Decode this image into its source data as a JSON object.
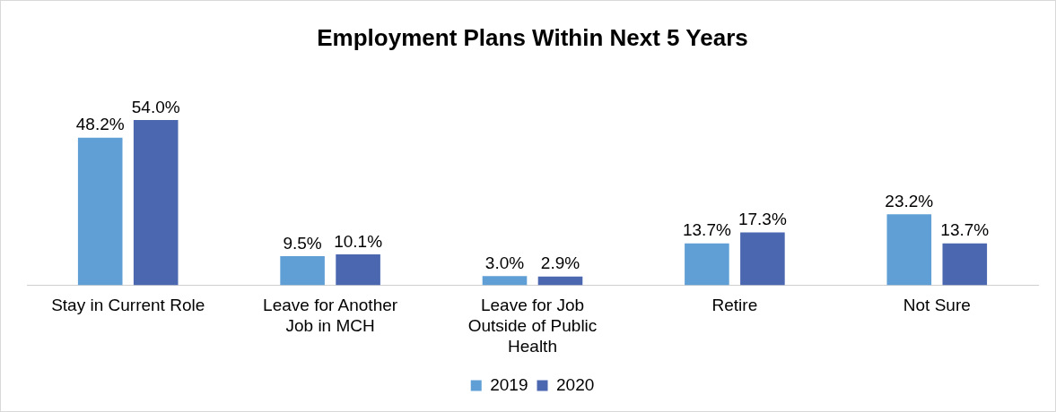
{
  "chart_data": {
    "type": "bar",
    "title": "Employment Plans Within Next 5 Years",
    "categories": [
      "Stay in Current Role",
      "Leave for Another Job in MCH",
      "Leave for Job Outside of Public Health",
      "Retire",
      "Not Sure"
    ],
    "series": [
      {
        "name": "2019",
        "color": "#5f9fd5",
        "values": [
          48.2,
          9.5,
          3.0,
          13.7,
          23.2
        ],
        "value_labels": [
          "48.2%",
          "9.5%",
          "3.0%",
          "13.7%",
          "23.2%"
        ]
      },
      {
        "name": "2020",
        "color": "#4a67b0",
        "values": [
          54.0,
          10.1,
          2.9,
          17.3,
          13.7
        ],
        "value_labels": [
          "54.0%",
          "10.1%",
          "2.9%",
          "17.3%",
          "13.7%"
        ]
      }
    ],
    "legend": "bottom",
    "grid": false
  }
}
